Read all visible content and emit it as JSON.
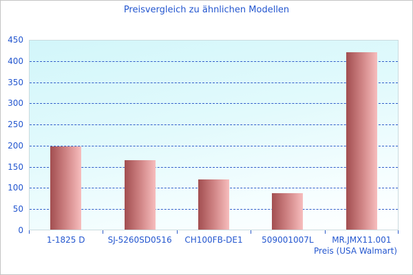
{
  "chart_data": {
    "type": "bar",
    "title": "Preisvergleich zu ähnlichen Modellen",
    "xlabel": "Preis (USA Walmart)",
    "ylabel": "",
    "categories": [
      "1-1825 D",
      "SJ-5260SD0516",
      "CH100FB-DE1",
      "509001007L",
      "MR.JMX11.001"
    ],
    "values": [
      198,
      165,
      120,
      88,
      420
    ],
    "ylim": [
      0,
      450
    ],
    "y_ticks": [
      0,
      50,
      100,
      150,
      200,
      250,
      300,
      350,
      400,
      450
    ],
    "grid": "horizontal-dashed",
    "legend_position": "none"
  },
  "colors": {
    "text_blue": "#2356cf",
    "grid_blue": "#2e5bc9",
    "bar_gradient_dark": "#a24e50",
    "bar_gradient_mid": "#cf8384",
    "bar_gradient_light": "#f7bdbd",
    "plot_bg_top": "#d2f6fa",
    "plot_bg_bottom": "#ffffff",
    "plot_border": "#c9dade",
    "frame_border": "#c3c3c3"
  }
}
